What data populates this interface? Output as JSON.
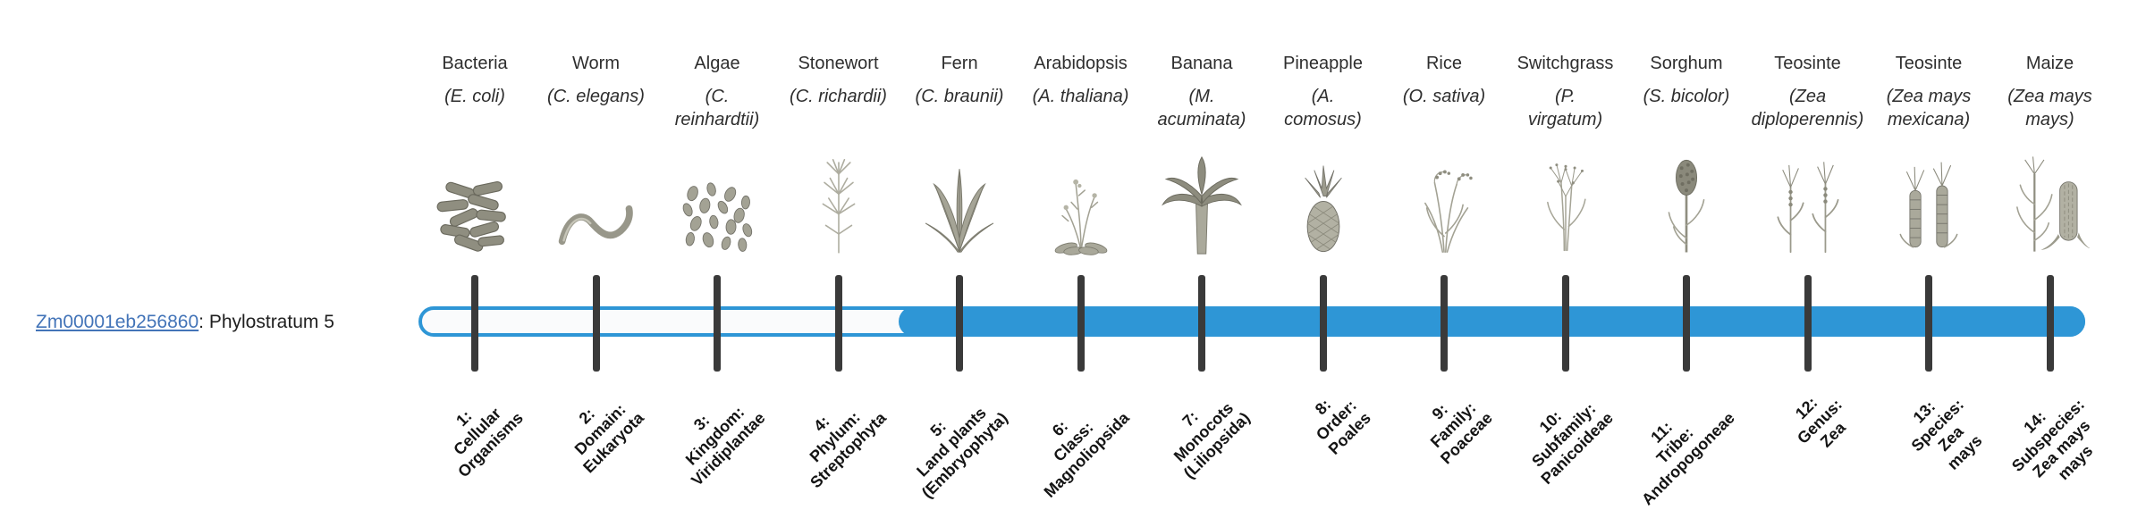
{
  "gene": {
    "link_text": "Zm00001eb256860",
    "suffix": ": Phylostratum 5"
  },
  "timeline": {
    "accent_color": "#2e96d6",
    "track_background": "#fafbfc",
    "tick_color": "#3a3a3a",
    "link_color": "#4374b8",
    "phylostratum": 5,
    "total_strata": 14
  },
  "organisms": [
    {
      "name": "Bacteria",
      "sci_lines": [
        "(E. coli)"
      ],
      "icon": "bacteria-icon",
      "stratum_lines": [
        "1:",
        "Cellular",
        "Organisms"
      ]
    },
    {
      "name": "Worm",
      "sci_lines": [
        "(C. elegans)"
      ],
      "icon": "worm-icon",
      "stratum_lines": [
        "2:",
        "Domain:",
        "Eukaryota"
      ]
    },
    {
      "name": "Algae",
      "sci_lines": [
        "(C.",
        "reinhardtii)"
      ],
      "icon": "algae-icon",
      "stratum_lines": [
        "3:",
        "Kingdom:",
        "Viridiplantae"
      ]
    },
    {
      "name": "Stonewort",
      "sci_lines": [
        "(C. richardii)"
      ],
      "icon": "stonewort-icon",
      "stratum_lines": [
        "4:",
        "Phylum:",
        "Streptophyta"
      ]
    },
    {
      "name": "Fern",
      "sci_lines": [
        "(C. braunii)"
      ],
      "icon": "fern-icon",
      "stratum_lines": [
        "5:",
        "Land plants",
        "(Embryophyta)"
      ]
    },
    {
      "name": "Arabidopsis",
      "sci_lines": [
        "(A. thaliana)"
      ],
      "icon": "arabidopsis-icon",
      "stratum_lines": [
        "6:",
        "Class:",
        "Magnoliopsida"
      ]
    },
    {
      "name": "Banana",
      "sci_lines": [
        "(M.",
        "acuminata)"
      ],
      "icon": "banana-icon",
      "stratum_lines": [
        "7:",
        "Monocots",
        "(Liliopsida)"
      ]
    },
    {
      "name": "Pineapple",
      "sci_lines": [
        "(A.",
        "comosus)"
      ],
      "icon": "pineapple-icon",
      "stratum_lines": [
        "8:",
        "Order:",
        "Poales"
      ]
    },
    {
      "name": "Rice",
      "sci_lines": [
        "(O. sativa)"
      ],
      "icon": "rice-icon",
      "stratum_lines": [
        "9:",
        "Family:",
        "Poaceae"
      ]
    },
    {
      "name": "Switchgrass",
      "sci_lines": [
        "(P.",
        "virgatum)"
      ],
      "icon": "switchgrass-icon",
      "stratum_lines": [
        "10:",
        "Subfamily:",
        "Panicoideae"
      ]
    },
    {
      "name": "Sorghum",
      "sci_lines": [
        "(S. bicolor)"
      ],
      "icon": "sorghum-icon",
      "stratum_lines": [
        "11:",
        "Tribe:",
        "Andropogoneae"
      ]
    },
    {
      "name": "Teosinte",
      "sci_lines": [
        "(Zea",
        "diploperennis)"
      ],
      "icon": "teosinte-diploperennis-icon",
      "stratum_lines": [
        "12:",
        "Genus:",
        "Zea"
      ]
    },
    {
      "name": "Teosinte",
      "sci_lines": [
        "(Zea mays",
        "mexicana)"
      ],
      "icon": "teosinte-mexicana-icon",
      "stratum_lines": [
        "13:",
        "Species:",
        "Zea",
        "mays"
      ]
    },
    {
      "name": "Maize",
      "sci_lines": [
        "(Zea mays",
        "mays)"
      ],
      "icon": "maize-icon",
      "stratum_lines": [
        "14:",
        "Subspecies:",
        "Zea mays",
        "mays"
      ]
    }
  ]
}
